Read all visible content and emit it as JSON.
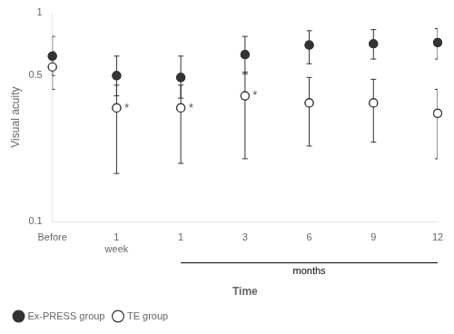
{
  "chart_data": {
    "type": "scatter",
    "xlabel": "Time",
    "ylabel": "Visual acuity",
    "categories": [
      "Before",
      "1\nweek",
      "1",
      "3",
      "6",
      "9",
      "12"
    ],
    "series": [
      {
        "name": "Ex-PRESS group",
        "color": "#333333",
        "marker": "filled_circle",
        "values": [
          0.62,
          0.5,
          0.49,
          0.63,
          0.7,
          0.71,
          0.72
        ],
        "error_low": [
          0.12,
          0.1,
          0.1,
          0.12,
          0.13,
          0.11,
          0.12
        ],
        "error_high": [
          0.15,
          0.12,
          0.13,
          0.14,
          0.12,
          0.12,
          0.12
        ]
      },
      {
        "name": "TE group",
        "color": "#333333",
        "marker": "open_circle",
        "values": [
          0.55,
          0.35,
          0.35,
          0.4,
          0.37,
          0.37,
          0.33
        ],
        "error_low": [
          0.12,
          0.18,
          0.16,
          0.2,
          0.14,
          0.13,
          0.13
        ],
        "error_high": [
          0.1,
          0.1,
          0.1,
          0.12,
          0.12,
          0.11,
          0.1
        ]
      }
    ],
    "log": "y",
    "ylim": [
      0.1,
      1
    ],
    "yticks": [
      0.1,
      0.5,
      1
    ],
    "grid": false,
    "legend": "lower left",
    "annotations": [
      {
        "text": "*",
        "x": "1\nweek",
        "series": "TE group"
      },
      {
        "text": "*",
        "x": "1",
        "series": "TE group"
      },
      {
        "text": "*",
        "x": "3",
        "series": "TE group"
      },
      {
        "text": "months",
        "from": "1",
        "to": "12"
      }
    ]
  }
}
